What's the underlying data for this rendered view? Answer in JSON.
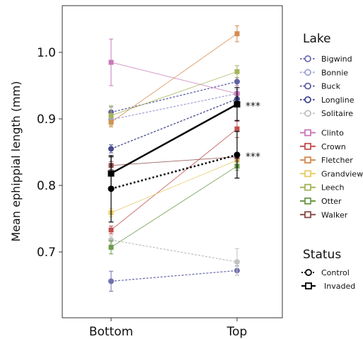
{
  "chart_data": {
    "type": "line",
    "xlabel": "",
    "ylabel": "Mean ephippial length (mm)",
    "categories": [
      "Bottom",
      "Top"
    ],
    "ylim": [
      0.62,
      1.07
    ],
    "yticks": [
      "0.7",
      "0.8",
      "0.9",
      "1.0"
    ],
    "ytick_values": [
      0.7,
      0.8,
      0.9,
      1.0
    ],
    "grid": false,
    "legend_placement": "right",
    "legend_lake_title": "Lake",
    "legend_status_title": "Status",
    "series": [
      {
        "name": "Bigwind",
        "group": "Control",
        "color": "#7072b0",
        "values": [
          0.656,
          0.672
        ],
        "err": [
          0.015,
          0.007
        ]
      },
      {
        "name": "Bonnie",
        "group": "Control",
        "color": "#a3a6d6",
        "values": [
          0.899,
          0.938
        ],
        "err": [
          0.006,
          0.006
        ]
      },
      {
        "name": "Buck",
        "group": "Control",
        "color": "#5e62a5",
        "values": [
          0.91,
          0.956
        ],
        "err": [
          0.008,
          0.006
        ]
      },
      {
        "name": "Longline",
        "group": "Control",
        "color": "#454a8c",
        "values": [
          0.855,
          0.93
        ],
        "err": [
          0.006,
          0.006
        ]
      },
      {
        "name": "Solitaire",
        "group": "Control",
        "color": "#c2c2c2",
        "values": [
          0.718,
          0.685
        ],
        "err": [
          0.006,
          0.02
        ]
      },
      {
        "name": "Clinto",
        "group": "Invaded",
        "color": "#c77ab8",
        "values": [
          0.985,
          0.938
        ],
        "err": [
          0.035,
          0.012
        ]
      },
      {
        "name": "Crown",
        "group": "Invaded",
        "color": "#c0504d",
        "values": [
          0.733,
          0.885
        ],
        "err": [
          0.006,
          0.013
        ]
      },
      {
        "name": "Fletcher",
        "group": "Invaded",
        "color": "#d68b4f",
        "values": [
          0.895,
          1.028
        ],
        "err": [
          0.007,
          0.012
        ]
      },
      {
        "name": "Grandview",
        "group": "Invaded",
        "color": "#e8cc67",
        "values": [
          0.759,
          0.838
        ],
        "err": [
          0.006,
          0.006
        ]
      },
      {
        "name": "Leech",
        "group": "Invaded",
        "color": "#a6b35a",
        "values": [
          0.905,
          0.971
        ],
        "err": [
          0.015,
          0.009
        ]
      },
      {
        "name": "Otter",
        "group": "Invaded",
        "color": "#6b9b4a",
        "values": [
          0.707,
          0.829
        ],
        "err": [
          0.01,
          0.006
        ]
      },
      {
        "name": "Walker",
        "group": "Invaded",
        "color": "#8c4a4a",
        "values": [
          0.83,
          0.843
        ],
        "err": [
          0.006,
          0.006
        ]
      }
    ],
    "means": [
      {
        "name": "Control",
        "style": "dotted",
        "marker": "circle",
        "values": [
          0.795,
          0.846
        ],
        "err": [
          0.05,
          0.035
        ],
        "sig_top": "***"
      },
      {
        "name": "Invaded",
        "style": "solid",
        "marker": "square",
        "values": [
          0.818,
          0.922
        ],
        "err": [
          0.025,
          0.025
        ],
        "sig_top": "***"
      }
    ]
  }
}
